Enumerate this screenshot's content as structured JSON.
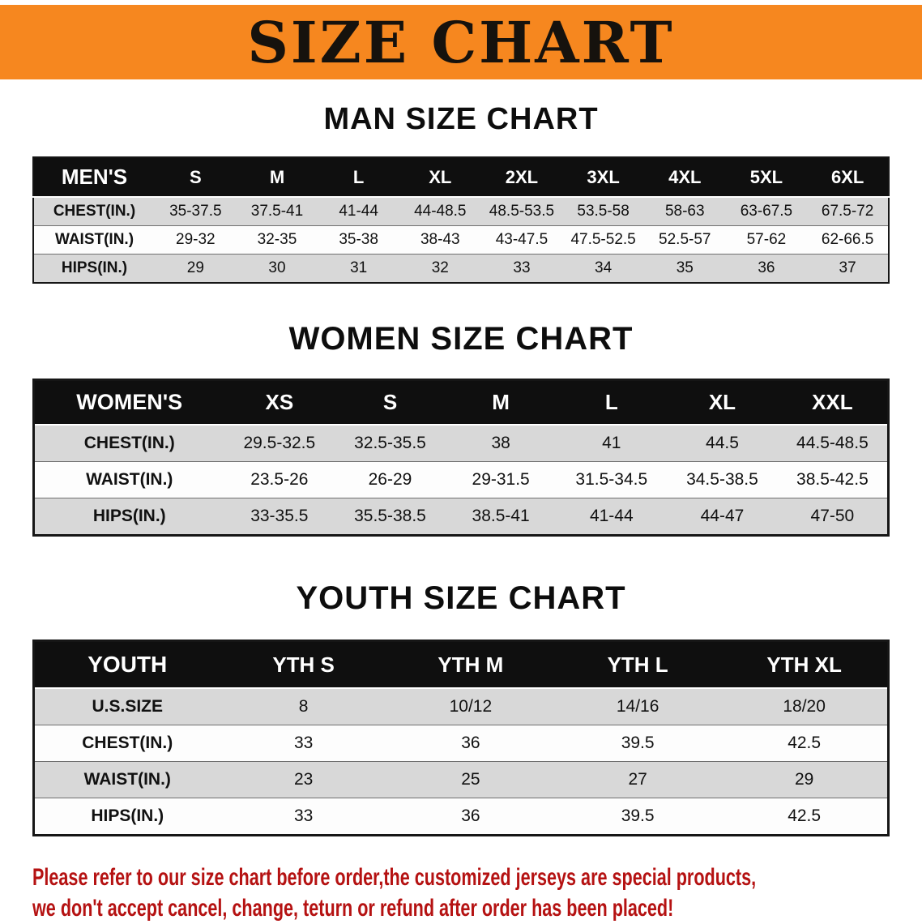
{
  "banner": {
    "title": "SIZE CHART"
  },
  "colors": {
    "banner_bg": "#f6871f",
    "header_bg": "#0f0f0f",
    "row_alt_bg": "#d8d8d8",
    "disclaimer_color": "#b51212"
  },
  "chart_data": [
    {
      "type": "table",
      "title": "MAN SIZE CHART",
      "columns": [
        "MEN'S",
        "S",
        "M",
        "L",
        "XL",
        "2XL",
        "3XL",
        "4XL",
        "5XL",
        "6XL"
      ],
      "rows": [
        [
          "CHEST(IN.)",
          "35-37.5",
          "37.5-41",
          "41-44",
          "44-48.5",
          "48.5-53.5",
          "53.5-58",
          "58-63",
          "63-67.5",
          "67.5-72"
        ],
        [
          "WAIST(IN.)",
          "29-32",
          "32-35",
          "35-38",
          "38-43",
          "43-47.5",
          "47.5-52.5",
          "52.5-57",
          "57-62",
          "62-66.5"
        ],
        [
          "HIPS(IN.)",
          "29",
          "30",
          "31",
          "32",
          "33",
          "34",
          "35",
          "36",
          "37"
        ]
      ]
    },
    {
      "type": "table",
      "title": "WOMEN SIZE CHART",
      "columns": [
        "WOMEN'S",
        "XS",
        "S",
        "M",
        "L",
        "XL",
        "XXL"
      ],
      "rows": [
        [
          "CHEST(IN.)",
          "29.5-32.5",
          "32.5-35.5",
          "38",
          "41",
          "44.5",
          "44.5-48.5"
        ],
        [
          "WAIST(IN.)",
          "23.5-26",
          "26-29",
          "29-31.5",
          "31.5-34.5",
          "34.5-38.5",
          "38.5-42.5"
        ],
        [
          "HIPS(IN.)",
          "33-35.5",
          "35.5-38.5",
          "38.5-41",
          "41-44",
          "44-47",
          "47-50"
        ]
      ]
    },
    {
      "type": "table",
      "title": "YOUTH SIZE CHART",
      "columns": [
        "YOUTH",
        "YTH S",
        "YTH M",
        "YTH L",
        "YTH XL"
      ],
      "rows": [
        [
          "U.S.SIZE",
          "8",
          "10/12",
          "14/16",
          "18/20"
        ],
        [
          "CHEST(IN.)",
          "33",
          "36",
          "39.5",
          "42.5"
        ],
        [
          "WAIST(IN.)",
          "23",
          "25",
          "27",
          "29"
        ],
        [
          "HIPS(IN.)",
          "33",
          "36",
          "39.5",
          "42.5"
        ]
      ]
    }
  ],
  "disclaimer": {
    "line1": "Please refer to our size chart before order,the customized jerseys are special products,",
    "line2": "we don't accept cancel, change, teturn or refund after order has been placed!"
  }
}
